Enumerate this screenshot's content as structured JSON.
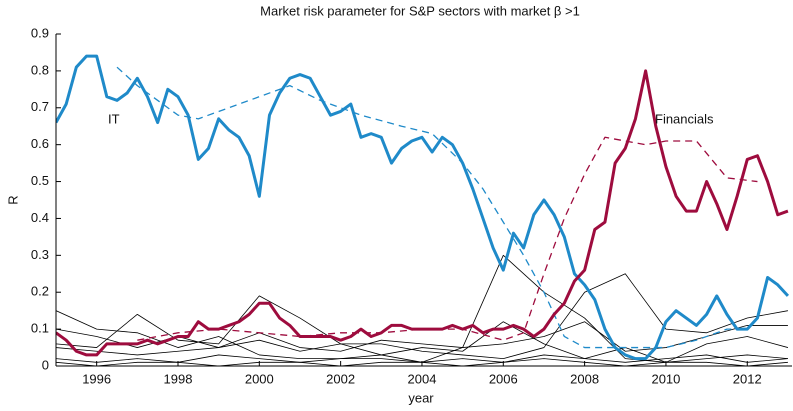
{
  "chart_data": {
    "type": "line",
    "title": "Market risk parameter for S&P sectors with market β >1",
    "xlabel": "year",
    "ylabel": "R",
    "annotations": [
      "IT",
      "Financials"
    ],
    "xlim": [
      1995,
      2013.1
    ],
    "ylim": [
      0,
      0.9
    ],
    "xticks": [
      1996,
      1998,
      2000,
      2002,
      2004,
      2006,
      2008,
      2010,
      2012
    ],
    "yticks": [
      0,
      0.1,
      0.2,
      0.3,
      0.4,
      0.5,
      0.6,
      0.7,
      0.8,
      0.9
    ],
    "grid": false,
    "x": [
      1995,
      1995.25,
      1995.5,
      1995.75,
      1996,
      1996.25,
      1996.5,
      1996.75,
      1997,
      1997.25,
      1997.5,
      1997.75,
      1998,
      1998.25,
      1998.5,
      1998.75,
      1999,
      1999.25,
      1999.5,
      1999.75,
      2000,
      2000.25,
      2000.5,
      2000.75,
      2001,
      2001.25,
      2001.5,
      2001.75,
      2002,
      2002.25,
      2002.5,
      2002.75,
      2003,
      2003.25,
      2003.5,
      2003.75,
      2004,
      2004.25,
      2004.5,
      2004.75,
      2005,
      2005.25,
      2005.5,
      2005.75,
      2006,
      2006.25,
      2006.5,
      2006.75,
      2007,
      2007.25,
      2007.5,
      2007.75,
      2008,
      2008.25,
      2008.5,
      2008.75,
      2009,
      2009.25,
      2009.5,
      2009.75,
      2010,
      2010.25,
      2010.5,
      2010.75,
      2011,
      2011.25,
      2011.5,
      2011.75,
      2012,
      2012.25,
      2012.5,
      2012.75,
      2013
    ],
    "series": [
      {
        "color": "#000000",
        "linewidth": 0.8,
        "linestyle": "solid",
        "x": [
          1995,
          1996,
          1997,
          1998,
          1999,
          2000,
          2001,
          2002,
          2003,
          2004,
          2005,
          2006,
          2007,
          2008,
          2009,
          2010,
          2011,
          2012,
          2013
        ],
        "values": [
          0.15,
          0.1,
          0.09,
          0.05,
          0.08,
          0.03,
          0.02,
          0.02,
          0.02,
          0.01,
          0.05,
          0.3,
          0.2,
          0.13,
          0.02,
          0.01,
          0.02,
          0.03,
          0.02
        ]
      },
      {
        "color": "#000000",
        "linewidth": 0.8,
        "linestyle": "solid",
        "x": [
          1995,
          1996,
          1997,
          1998,
          1999,
          2000,
          2001,
          2002,
          2003,
          2004,
          2005,
          2006,
          2007,
          2008,
          2009,
          2010,
          2011,
          2012,
          2013
        ],
        "values": [
          0.06,
          0.05,
          0.14,
          0.07,
          0.06,
          0.19,
          0.13,
          0.06,
          0.06,
          0.04,
          0.03,
          0.02,
          0.05,
          0.2,
          0.25,
          0.1,
          0.09,
          0.13,
          0.15
        ]
      },
      {
        "color": "#000000",
        "linewidth": 0.8,
        "linestyle": "solid",
        "x": [
          1995,
          1996,
          1997,
          1998,
          1999,
          2000,
          2001,
          2002,
          2003,
          2004,
          2005,
          2006,
          2007,
          2008,
          2009,
          2010,
          2011,
          2012,
          2013
        ],
        "values": [
          0.1,
          0.08,
          0.05,
          0.08,
          0.05,
          0.09,
          0.05,
          0.04,
          0.07,
          0.06,
          0.05,
          0.06,
          0.08,
          0.12,
          0.04,
          0.05,
          0.08,
          0.11,
          0.11
        ]
      },
      {
        "color": "#000000",
        "linewidth": 0.8,
        "linestyle": "solid",
        "x": [
          1995,
          1996,
          1997,
          1998,
          1999,
          2000,
          2001,
          2002,
          2003,
          2004,
          2005,
          2006,
          2007,
          2008,
          2009,
          2010,
          2011,
          2012,
          2013
        ],
        "values": [
          0.05,
          0.04,
          0.03,
          0.04,
          0.05,
          0.07,
          0.04,
          0.06,
          0.03,
          0.05,
          0.04,
          0.12,
          0.06,
          0.02,
          0.05,
          0.01,
          0.06,
          0.08,
          0.05
        ]
      },
      {
        "color": "#000000",
        "linewidth": 0.8,
        "linestyle": "solid",
        "x": [
          1995,
          1996,
          1997,
          1998,
          1999,
          2000,
          2001,
          2002,
          2003,
          2004,
          2005,
          2006,
          2007,
          2008,
          2009,
          2010,
          2011,
          2012,
          2013
        ],
        "values": [
          0.02,
          0.01,
          0.02,
          0.01,
          0.03,
          0.02,
          0.01,
          0.02,
          0.03,
          0.01,
          0.02,
          0.01,
          0.03,
          0.02,
          0.01,
          0.02,
          0.03,
          0.01,
          0.02
        ]
      },
      {
        "color": "#000000",
        "linewidth": 0.8,
        "linestyle": "solid",
        "x": [
          1995,
          1996,
          1997,
          1998,
          1999,
          2000,
          2001,
          2002,
          2003,
          2004,
          2005,
          2006,
          2007,
          2008,
          2009,
          2010,
          2011,
          2012,
          2013
        ],
        "values": [
          0.01,
          0,
          0.01,
          0.01,
          0,
          0.01,
          0.01,
          0,
          0.01,
          0.01,
          0,
          0.01,
          0.02,
          0.01,
          0,
          0.01,
          0.01,
          0,
          0.01
        ]
      },
      {
        "color": "#1f8ac9",
        "linewidth": 1.3,
        "linestyle": "dashed",
        "x": [
          1996.5,
          1997,
          1998,
          1998.5,
          1999,
          2000,
          2000.75,
          2001.5,
          2002.5,
          2003.5,
          2004.25,
          2005,
          2005.5,
          2006,
          2006.5,
          2007,
          2007.5,
          2008,
          2009,
          2010,
          2010.75,
          2011.5,
          2012
        ],
        "values": [
          0.81,
          0.76,
          0.68,
          0.67,
          0.69,
          0.73,
          0.76,
          0.72,
          0.68,
          0.65,
          0.63,
          0.55,
          0.48,
          0.39,
          0.3,
          0.2,
          0.08,
          0.05,
          0.05,
          0.05,
          0.07,
          0.1,
          0.1
        ]
      },
      {
        "color": "#9e0c3e",
        "linewidth": 1.3,
        "linestyle": "dashed",
        "x": [
          1997,
          1998,
          1999,
          2000,
          2001,
          2002,
          2003,
          2004,
          2005,
          2006,
          2006.5,
          2007,
          2007.5,
          2008,
          2008.5,
          2009,
          2009.5,
          2010,
          2010.75,
          2011.5,
          2012.25
        ],
        "values": [
          0.07,
          0.09,
          0.1,
          0.09,
          0.08,
          0.09,
          0.09,
          0.1,
          0.1,
          0.07,
          0.09,
          0.25,
          0.4,
          0.52,
          0.62,
          0.61,
          0.6,
          0.61,
          0.61,
          0.51,
          0.5
        ]
      },
      {
        "color": "#1f8ac9",
        "linewidth": 3,
        "linestyle": "solid",
        "values": [
          0.66,
          0.71,
          0.81,
          0.84,
          0.84,
          0.73,
          0.72,
          0.74,
          0.78,
          0.73,
          0.66,
          0.75,
          0.73,
          0.68,
          0.56,
          0.59,
          0.67,
          0.64,
          0.62,
          0.57,
          0.46,
          0.68,
          0.74,
          0.78,
          0.79,
          0.78,
          0.73,
          0.68,
          0.69,
          0.71,
          0.62,
          0.63,
          0.62,
          0.55,
          0.59,
          0.61,
          0.62,
          0.58,
          0.62,
          0.6,
          0.55,
          0.48,
          0.4,
          0.32,
          0.26,
          0.36,
          0.32,
          0.41,
          0.45,
          0.41,
          0.35,
          0.25,
          0.22,
          0.18,
          0.1,
          0.05,
          0.03,
          0.02,
          0.02,
          0.05,
          0.12,
          0.15,
          0.13,
          0.11,
          0.14,
          0.19,
          0.14,
          0.1,
          0.1,
          0.13,
          0.24,
          0.22,
          0.19
        ]
      },
      {
        "color": "#9e0c3e",
        "linewidth": 3,
        "linestyle": "solid",
        "values": [
          0.09,
          0.07,
          0.04,
          0.03,
          0.03,
          0.06,
          0.06,
          0.06,
          0.06,
          0.07,
          0.06,
          0.07,
          0.08,
          0.08,
          0.12,
          0.1,
          0.1,
          0.11,
          0.12,
          0.14,
          0.17,
          0.17,
          0.13,
          0.11,
          0.08,
          0.08,
          0.08,
          0.08,
          0.07,
          0.08,
          0.1,
          0.08,
          0.09,
          0.11,
          0.11,
          0.1,
          0.1,
          0.1,
          0.1,
          0.11,
          0.1,
          0.11,
          0.09,
          0.1,
          0.1,
          0.11,
          0.1,
          0.08,
          0.1,
          0.14,
          0.17,
          0.23,
          0.26,
          0.37,
          0.39,
          0.55,
          0.59,
          0.67,
          0.8,
          0.65,
          0.54,
          0.46,
          0.42,
          0.42,
          0.5,
          0.44,
          0.37,
          0.46,
          0.56,
          0.57,
          0.5,
          0.41,
          0.42
        ]
      }
    ]
  }
}
